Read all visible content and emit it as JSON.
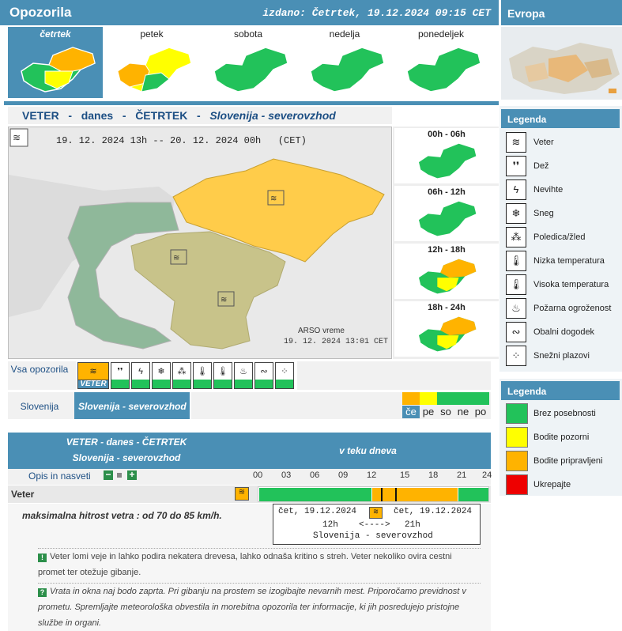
{
  "header": {
    "title": "Opozorila",
    "issued": "izdano: Četrtek, 19.12.2024 09:15 CET",
    "europe": "Evropa"
  },
  "days": [
    {
      "label": "četrtek",
      "selected": true
    },
    {
      "label": "petek"
    },
    {
      "label": "sobota"
    },
    {
      "label": "nedelja"
    },
    {
      "label": "ponedeljek"
    }
  ],
  "panel": {
    "w1": "VETER",
    "dash1": "-",
    "w2": "danes",
    "dash2": "-",
    "w3": "ČETRTEK",
    "dash3": "-",
    "region": "Slovenija - severovzhod"
  },
  "map": {
    "from": "19. 12. 2024  13h",
    "sep": "--",
    "to": "20. 12. 2024  00h",
    "tz": "(CET)",
    "credit": "ARSO vreme",
    "credit_time": "19. 12. 2024  13:01 CET"
  },
  "slots": [
    "00h - 06h",
    "06h - 12h",
    "12h - 18h",
    "18h - 24h"
  ],
  "filters": {
    "all_label": "Vsa opozorila",
    "selected_label": "VETER",
    "region_label": "Slovenija",
    "region_selected": "Slovenija - severovzhod",
    "day_abbr": [
      "če",
      "pe",
      "so",
      "ne",
      "po"
    ]
  },
  "legend1": {
    "title": "Legenda",
    "items": [
      "Veter",
      "Dež",
      "Nevihte",
      "Sneg",
      "Poledica/žled",
      "Nizka temperatura",
      "Visoka temperatura",
      "Požarna ogroženost",
      "Obalni dogodek",
      "Snežni plazovi"
    ]
  },
  "legend2": {
    "title": "Legenda",
    "items": [
      {
        "label": "Brez posebnosti",
        "color": "#22c25a"
      },
      {
        "label": "Bodite pozorni",
        "color": "#ffff00"
      },
      {
        "label": "Bodite pripravljeni",
        "color": "#ffb300"
      },
      {
        "label": "Ukrepajte",
        "color": "#ee0000"
      }
    ]
  },
  "bottom": {
    "head1": "VETER - danes - ČETRTEK",
    "head2": "Slovenija - severovzhod",
    "head3": "v teku dneva",
    "desc_label": "Opis in nasveti",
    "hours": [
      "00",
      "03",
      "06",
      "09",
      "12",
      "15",
      "18",
      "21",
      "24"
    ],
    "row_label": "Veter",
    "max_text": "maksimalna hitrost vetra : od 70 do 85 km/h.",
    "info_from": "čet, 19.12.2024",
    "info_to": "čet, 19.12.2024",
    "info_h1": "12h",
    "info_arrow": "<---->",
    "info_h2": "21h",
    "info_region": "Slovenija - severovzhod",
    "note1": "Veter lomi veje in lahko podira nekatera drevesa, lahko odnaša kritino s streh. Veter nekoliko ovira cestni promet ter otežuje gibanje.",
    "note2": "Vrata in okna naj bodo zaprta. Pri gibanju na prostem se izogibajte nevarnih mest. Priporočamo previdnost v prometu. Spremljajte meteorološka obvestila in morebitna opozorila ter informacije, ki jih posredujejo pristojne službe in organi."
  }
}
